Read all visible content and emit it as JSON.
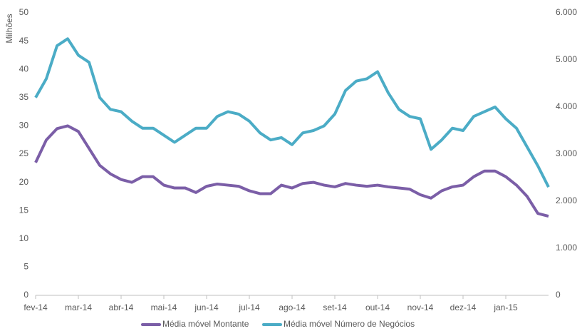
{
  "chart_data": {
    "type": "line",
    "y_label": "Milhões",
    "categories": [
      "fev-14",
      null,
      null,
      null,
      "mar-14",
      null,
      null,
      null,
      "abr-14",
      null,
      null,
      null,
      "mai-14",
      null,
      null,
      null,
      "jun-14",
      null,
      null,
      null,
      "jul-14",
      null,
      null,
      null,
      "ago-14",
      null,
      null,
      null,
      "set-14",
      null,
      null,
      null,
      "out-14",
      null,
      null,
      null,
      "nov-14",
      null,
      null,
      null,
      "dez-14",
      null,
      null,
      null,
      "jan-15",
      null,
      null,
      null,
      null
    ],
    "series": [
      {
        "name": "Média móvel Montante",
        "color": "#7b5ea7",
        "axis": "y",
        "values": [
          23.5,
          27.5,
          29.5,
          30,
          29,
          26,
          23,
          21.5,
          20.5,
          20,
          21,
          21,
          19.5,
          19,
          19,
          18.2,
          19.3,
          19.7,
          19.5,
          19.3,
          18.5,
          18,
          18,
          19.5,
          19,
          19.8,
          20,
          19.5,
          19.2,
          19.8,
          19.5,
          19.3,
          19.5,
          19.2,
          19,
          18.8,
          17.8,
          17.2,
          18.5,
          19.2,
          19.5,
          21,
          22,
          22,
          21,
          19.5,
          17.5,
          14.5,
          14
        ]
      },
      {
        "name": "Média móvel Número de Negócios",
        "color": "#4bacc6",
        "axis": "y2",
        "values": [
          4200,
          4600,
          5300,
          5450,
          5100,
          4950,
          4200,
          3950,
          3900,
          3700,
          3550,
          3550,
          3400,
          3250,
          3400,
          3550,
          3550,
          3800,
          3900,
          3850,
          3700,
          3450,
          3300,
          3350,
          3200,
          3450,
          3500,
          3600,
          3850,
          4350,
          4550,
          4600,
          4750,
          4300,
          3950,
          3800,
          3750,
          3100,
          3300,
          3550,
          3500,
          3800,
          3900,
          4000,
          3750,
          3550,
          3150,
          2750,
          2300
        ]
      }
    ],
    "ylim": [
      0,
      50
    ],
    "yticks": [
      0,
      5,
      10,
      15,
      20,
      25,
      30,
      35,
      40,
      45,
      50
    ],
    "y2lim": [
      0,
      6000
    ],
    "y2ticks": [
      0,
      {
        "value": 1000,
        "label": "1.000"
      },
      {
        "value": 2000,
        "label": "2.000"
      },
      {
        "value": 3000,
        "label": "3.000"
      },
      {
        "value": 4000,
        "label": "4.000"
      },
      {
        "value": 5000,
        "label": "5.000"
      },
      {
        "value": 6000,
        "label": "6.000"
      }
    ],
    "grid": false,
    "legend": "bottom"
  }
}
